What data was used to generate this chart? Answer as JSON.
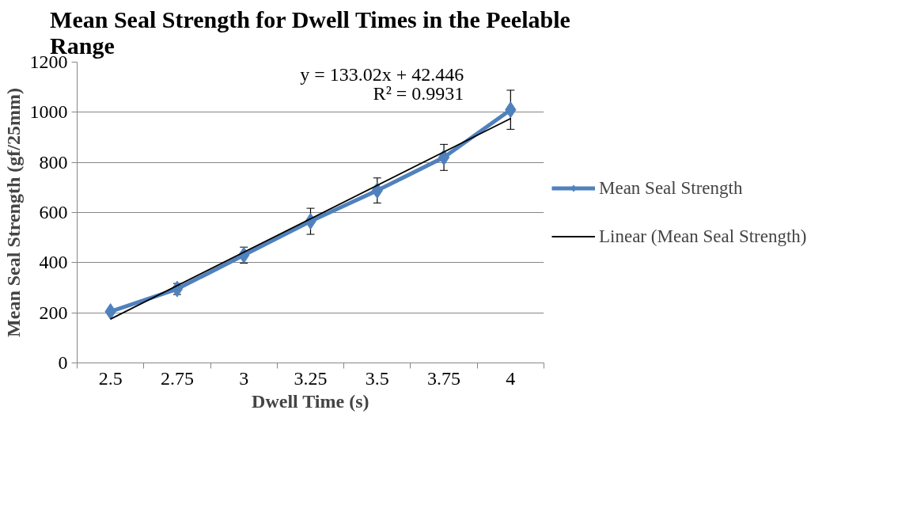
{
  "chart_data": {
    "type": "line",
    "title": "Mean Seal Strength for Dwell Times in the Peelable Range",
    "xlabel": "Dwell Time (s)",
    "ylabel": "Mean Seal Strength (gf/25mm)",
    "categories": [
      "2.5",
      "2.75",
      "3",
      "3.25",
      "3.5",
      "3.75",
      "4"
    ],
    "series": [
      {
        "name": "Mean Seal Strength",
        "color": "#4f81bd",
        "values": [
          205,
          295,
          430,
          565,
          688,
          820,
          1010
        ],
        "errors": [
          null,
          22,
          32,
          52,
          50,
          52,
          78
        ]
      },
      {
        "name": "Linear (Mean Seal Strength)",
        "type": "line",
        "color": "#000000",
        "x": [
          "2.5",
          "4"
        ],
        "values": [
          175,
          975
        ],
        "marker": "none"
      }
    ],
    "ylim": [
      0,
      1200
    ],
    "yticks": [
      0,
      200,
      400,
      600,
      800,
      1000,
      1200
    ],
    "grid": "y",
    "legend": "right",
    "marker": "diamond",
    "annotations": [
      "y = 133.02x + 42.446",
      "R² = 0.9931"
    ]
  }
}
